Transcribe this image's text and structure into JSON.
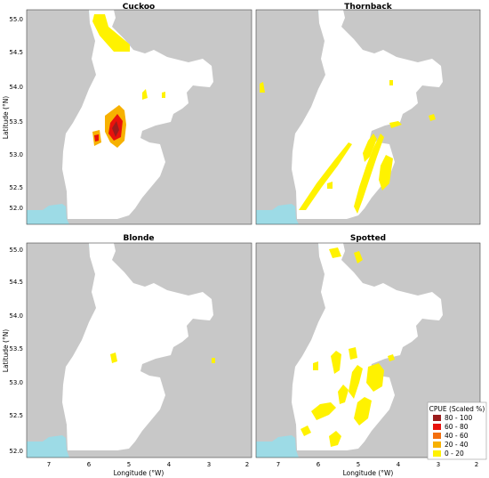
{
  "chart_data": {
    "type": "heatmap",
    "xlabel": "Longitude (°W)",
    "ylabel": "Latitude (°N)",
    "xlim": [
      7.5,
      2
    ],
    "ylim": [
      51.9,
      55.1
    ],
    "xticks": [
      7,
      6,
      5,
      4,
      3,
      2
    ],
    "yticks": [
      52.0,
      52.5,
      53.0,
      53.5,
      54.0,
      54.5,
      55.0
    ],
    "legend": {
      "title": "CPUE (Scaled %)",
      "placement": "bottom-right",
      "classes": [
        {
          "label": "80 - 100",
          "color": "#9b1c1c"
        },
        {
          "label": "60 - 80",
          "color": "#e8120c"
        },
        {
          "label": "40 - 60",
          "color": "#f36f0e"
        },
        {
          "label": "20 - 40",
          "color": "#f7b100"
        },
        {
          "label": "0 - 20",
          "color": "#fff200"
        }
      ]
    },
    "colors": {
      "land": "#c8c8c8",
      "sea": "#ffffff",
      "out_of_area_sea": "#9ddbe6"
    },
    "panels": [
      {
        "title": "Cuckoo",
        "hotspots": [
          {
            "lon": 5.5,
            "lat": 54.85,
            "class": 0
          },
          {
            "lon": 5.45,
            "lat": 53.2,
            "class": 4
          },
          {
            "lon": 5.2,
            "lat": 53.15,
            "class": 4
          },
          {
            "lon": 5.75,
            "lat": 53.15,
            "class": 3
          },
          {
            "lon": 4.6,
            "lat": 53.75,
            "class": 0
          },
          {
            "lon": 4.15,
            "lat": 53.85,
            "class": 0
          }
        ]
      },
      {
        "title": "Thornback",
        "hotspots": [
          {
            "lon": 5.8,
            "lat": 52.65,
            "class": 0
          },
          {
            "lon": 4.9,
            "lat": 52.55,
            "class": 0
          },
          {
            "lon": 4.35,
            "lat": 52.8,
            "class": 0
          },
          {
            "lon": 4.75,
            "lat": 53.05,
            "class": 0
          },
          {
            "lon": 2.85,
            "lat": 53.25,
            "class": 0
          },
          {
            "lon": 7.3,
            "lat": 53.95,
            "class": 0
          }
        ]
      },
      {
        "title": "Blonde",
        "hotspots": [
          {
            "lon": 5.4,
            "lat": 53.3,
            "class": 0
          },
          {
            "lon": 3.2,
            "lat": 53.25,
            "class": 0
          }
        ]
      },
      {
        "title": "Spotted",
        "hotspots": [
          {
            "lon": 5.5,
            "lat": 55.0,
            "class": 0
          },
          {
            "lon": 5.1,
            "lat": 54.9,
            "class": 0
          },
          {
            "lon": 5.2,
            "lat": 53.3,
            "class": 0
          },
          {
            "lon": 4.6,
            "lat": 53.3,
            "class": 0
          },
          {
            "lon": 4.3,
            "lat": 53.1,
            "class": 0
          },
          {
            "lon": 5.0,
            "lat": 53.05,
            "class": 0
          },
          {
            "lon": 5.6,
            "lat": 52.55,
            "class": 0
          },
          {
            "lon": 4.6,
            "lat": 52.3,
            "class": 0
          },
          {
            "lon": 5.6,
            "lat": 52.1,
            "class": 0
          }
        ]
      }
    ]
  }
}
